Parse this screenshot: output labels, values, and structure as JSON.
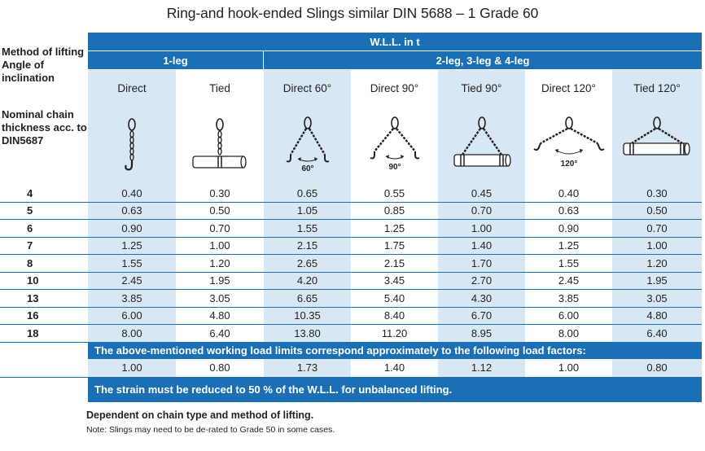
{
  "title": "Ring-and hook-ended Slings similar DIN 5688 – 1 Grade 60",
  "side": {
    "method_label": "Method of lifting Angle of inclination",
    "nominal_label": "Nominal chain thickness acc. to DIN5687"
  },
  "header": {
    "wll": "W.L.L. in t",
    "one_leg": "1-leg",
    "multi_leg": "2-leg, 3-leg & 4-leg"
  },
  "columns": [
    "Direct",
    "Tied",
    "Direct 60°",
    "Direct 90°",
    "Tied 90°",
    "Direct 120°",
    "Tied 120°"
  ],
  "diagram_angles": {
    "direct60": "60°",
    "direct90": "90°",
    "direct120": "120°"
  },
  "rows": [
    {
      "size": "4",
      "values": [
        "0.40",
        "0.30",
        "0.65",
        "0.55",
        "0.45",
        "0.40",
        "0.30"
      ]
    },
    {
      "size": "5",
      "values": [
        "0.63",
        "0.50",
        "1.05",
        "0.85",
        "0.70",
        "0.63",
        "0.50"
      ]
    },
    {
      "size": "6",
      "values": [
        "0.90",
        "0.70",
        "1.55",
        "1.25",
        "1.00",
        "0.90",
        "0.70"
      ]
    },
    {
      "size": "7",
      "values": [
        "1.25",
        "1.00",
        "2.15",
        "1.75",
        "1.40",
        "1.25",
        "1.00"
      ]
    },
    {
      "size": "8",
      "values": [
        "1.55",
        "1.20",
        "2.65",
        "2.15",
        "1.70",
        "1.55",
        "1.20"
      ]
    },
    {
      "size": "10",
      "values": [
        "2.45",
        "1.95",
        "4.20",
        "3.45",
        "2.70",
        "2.45",
        "1.95"
      ]
    },
    {
      "size": "13",
      "values": [
        "3.85",
        "3.05",
        "6.65",
        "5.40",
        "4.30",
        "3.85",
        "3.05"
      ]
    },
    {
      "size": "16",
      "values": [
        "6.00",
        "4.80",
        "10.35",
        "8.40",
        "6.70",
        "6.00",
        "4.80"
      ]
    },
    {
      "size": "18",
      "values": [
        "8.00",
        "6.40",
        "13.80",
        "11.20",
        "8.95",
        "8.00",
        "6.40"
      ]
    }
  ],
  "load_factor_note": "The above-mentioned working load limits correspond approximately to the following load factors:",
  "load_factors": [
    "1.00",
    "0.80",
    "1.73",
    "1.40",
    "1.12",
    "1.00",
    "0.80"
  ],
  "strain_note": "The strain must be reduced to 50 % of the W.L.L. for unbalanced lifting.",
  "footer": {
    "dependent": "Dependent on chain type and method of lifting.",
    "note": "Note: Slings may need to be de-rated to Grade 50 in some cases."
  },
  "colors": {
    "blue": "#1a6fb5",
    "shade": "#d8e7f4"
  }
}
